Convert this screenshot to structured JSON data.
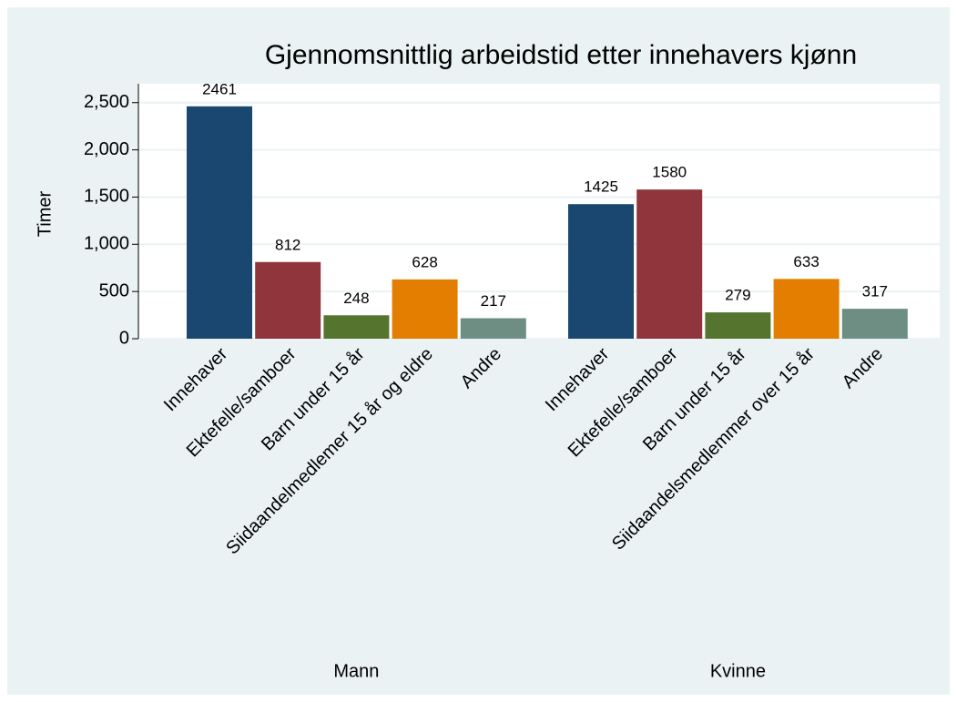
{
  "chart_data": {
    "type": "bar",
    "title": "Gjennomsnittlig arbeidstid etter innehavers kjønn",
    "ylabel": "Timer",
    "colors": [
      "#1a476f",
      "#90353b",
      "#55752f",
      "#e37e00",
      "#6e8e84"
    ],
    "groups": [
      {
        "name": "Mann",
        "categories": [
          "Innehaver",
          "Ektefelle/samboer",
          "Barn under 15 år",
          "Siidaandelmedlemer 15 år og eldre",
          "Andre"
        ],
        "values": [
          2461,
          812,
          248,
          628,
          217
        ]
      },
      {
        "name": "Kvinne",
        "categories": [
          "Innehaver",
          "Ektefelle/samboer",
          "Barn under 15 år",
          "Siidaandelsmedlemmer over 15 år",
          "Andre"
        ],
        "values": [
          1425,
          1580,
          279,
          633,
          317
        ]
      }
    ],
    "ylim": [
      0,
      2700
    ],
    "yticks": [
      0,
      500,
      {
        "value": 1000,
        "label": "1,000"
      },
      {
        "value": 1500,
        "label": "1,500"
      },
      {
        "value": 2000,
        "label": "2,000"
      },
      {
        "value": 2500,
        "label": "2,500"
      }
    ],
    "grid": true
  }
}
